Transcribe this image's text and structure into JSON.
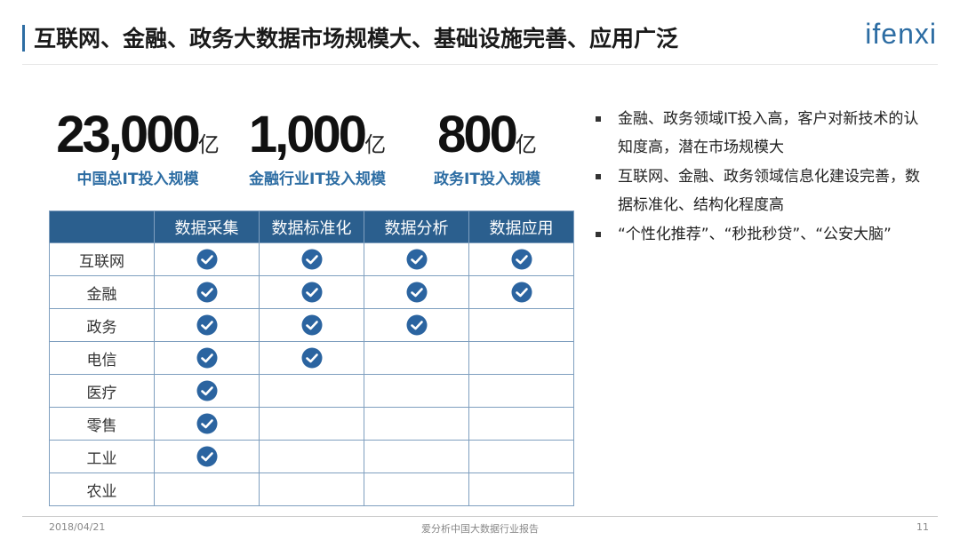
{
  "header": {
    "title": "互联网、金融、政务大数据市场规模大、基础设施完善、应用广泛",
    "logo": "ifenxi"
  },
  "stats": [
    {
      "value": "23,000",
      "unit": "亿",
      "label": "中国总IT投入规模"
    },
    {
      "value": "1,000",
      "unit": "亿",
      "label": "金融行业IT投入规模"
    },
    {
      "value": "800",
      "unit": "亿",
      "label": "政务IT投入规模"
    }
  ],
  "table": {
    "columns": [
      "数据采集",
      "数据标准化",
      "数据分析",
      "数据应用"
    ],
    "rows": [
      {
        "name": "互联网",
        "checks": [
          true,
          true,
          true,
          true
        ]
      },
      {
        "name": "金融",
        "checks": [
          true,
          true,
          true,
          true
        ]
      },
      {
        "name": "政务",
        "checks": [
          true,
          true,
          true,
          false
        ]
      },
      {
        "name": "电信",
        "checks": [
          true,
          true,
          false,
          false
        ]
      },
      {
        "name": "医疗",
        "checks": [
          true,
          false,
          false,
          false
        ]
      },
      {
        "name": "零售",
        "checks": [
          true,
          false,
          false,
          false
        ]
      },
      {
        "name": "工业",
        "checks": [
          true,
          false,
          false,
          false
        ]
      },
      {
        "name": "农业",
        "checks": [
          false,
          false,
          false,
          false
        ]
      }
    ]
  },
  "bullets": [
    "金融、政务领域IT投入高，客户对新技术的认知度高，潜在市场规模大",
    "互联网、金融、政务领域信息化建设完善，数据标准化、结构化程度高",
    "“个性化推荐”、“秒批秒贷”、“公安大脑”"
  ],
  "footer": {
    "date": "2018/04/21",
    "source": "爱分析中国大数据行业报告",
    "page": "11"
  }
}
